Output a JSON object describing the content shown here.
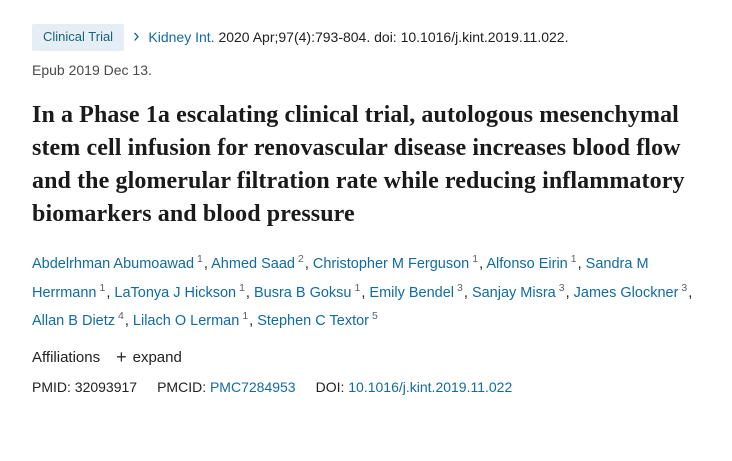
{
  "header": {
    "badge": "Clinical Trial",
    "journal": "Kidney Int.",
    "citation": "2020 Apr;97(4):793-804. doi: 10.1016/j.kint.2019.11.022.",
    "epub": "Epub 2019 Dec 13."
  },
  "title": "In a Phase 1a escalating clinical trial, autologous mesenchymal stem cell infusion for renovascular disease increases blood flow and the glomerular filtration rate while reducing inflammatory biomarkers and blood pressure",
  "authors": [
    {
      "name": "Abdelrhman Abumoawad",
      "sup": "1"
    },
    {
      "name": "Ahmed Saad",
      "sup": "2"
    },
    {
      "name": "Christopher M Ferguson",
      "sup": "1"
    },
    {
      "name": "Alfonso Eirin",
      "sup": "1"
    },
    {
      "name": "Sandra M Herrmann",
      "sup": "1"
    },
    {
      "name": "LaTonya J Hickson",
      "sup": "1"
    },
    {
      "name": "Busra B Goksu",
      "sup": "1"
    },
    {
      "name": "Emily Bendel",
      "sup": "3"
    },
    {
      "name": "Sanjay Misra",
      "sup": "3"
    },
    {
      "name": "James Glockner",
      "sup": "3"
    },
    {
      "name": "Allan B Dietz",
      "sup": "4"
    },
    {
      "name": "Lilach O Lerman",
      "sup": "1"
    },
    {
      "name": "Stephen C Textor",
      "sup": "5"
    }
  ],
  "affiliations": {
    "label": "Affiliations",
    "plus_icon": "+",
    "expand_label": "expand"
  },
  "ids": {
    "pmid_label": "PMID:",
    "pmid_value": "32093917",
    "pmcid_label": "PMCID:",
    "pmcid_value": "PMC7284953",
    "doi_label": "DOI:",
    "doi_value": "10.1016/j.kint.2019.11.022"
  },
  "icons": {
    "chevron_right": "›"
  },
  "colors": {
    "link": "#106ba3",
    "badge_bg": "#e4eef4",
    "badge_text": "#17627c"
  }
}
